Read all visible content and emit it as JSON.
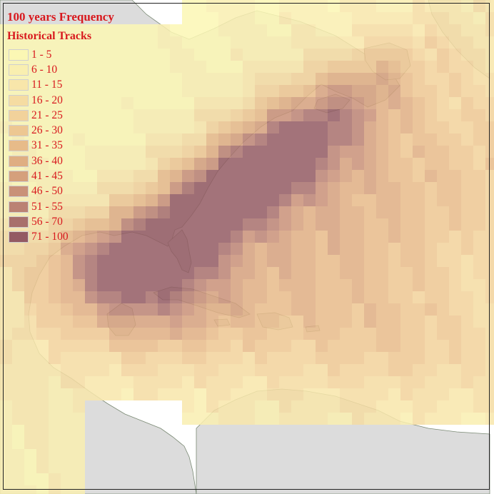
{
  "legend": {
    "title": "100 years Frequency",
    "subtitle": "Historical Tracks",
    "classes": [
      {
        "label": "1 - 5",
        "color": "#fbf7b4"
      },
      {
        "label": "6 - 10",
        "color": "#f9efb0"
      },
      {
        "label": "11 - 15",
        "color": "#f8e6aa"
      },
      {
        "label": "16 - 20",
        "color": "#f5dca2"
      },
      {
        "label": "21 - 25",
        "color": "#f2d29b"
      },
      {
        "label": "26 - 30",
        "color": "#edc792"
      },
      {
        "label": "31 - 35",
        "color": "#e7bb89"
      },
      {
        "label": "36 - 40",
        "color": "#dfae82"
      },
      {
        "label": "41 - 45",
        "color": "#d5a07c"
      },
      {
        "label": "46 - 50",
        "color": "#c99178"
      },
      {
        "label": "51 - 55",
        "color": "#bb8273"
      },
      {
        "label": "56 - 70",
        "color": "#a8706c"
      },
      {
        "label": "71 - 100",
        "color": "#935a63"
      }
    ]
  },
  "colors": {
    "ocean": "#ffffff",
    "land": "#dcdcdc",
    "coastline": "#7b8a75",
    "legend_text": "#d8191e",
    "frame": "#222222"
  }
}
